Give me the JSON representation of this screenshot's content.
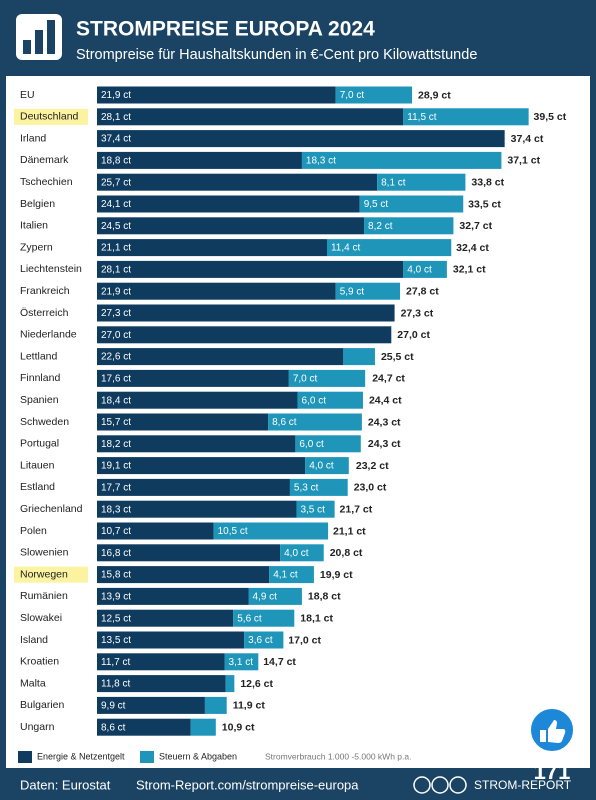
{
  "header": {
    "title": "STROMPREISE EUROPA 2024",
    "subtitle": "Strompreise für Haushaltskunden in €-Cent pro Kilowattstunde"
  },
  "chart_data": {
    "type": "bar",
    "orientation": "horizontal",
    "stacked": true,
    "categories": [
      "EU",
      "Deutschland",
      "Irland",
      "Dänemark",
      "Tschechien",
      "Belgien",
      "Italien",
      "Zypern",
      "Liechtenstein",
      "Frankreich",
      "Österreich",
      "Niederlande",
      "Lettland",
      "Finnland",
      "Spanien",
      "Schweden",
      "Portugal",
      "Litauen",
      "Estland",
      "Griechenland",
      "Polen",
      "Slowenien",
      "Norwegen",
      "Rumänien",
      "Slowakei",
      "Island",
      "Kroatien",
      "Malta",
      "Bulgarien",
      "Ungarn"
    ],
    "highlight": [
      1,
      22
    ],
    "xlim": [
      0,
      40
    ],
    "series": [
      {
        "name": "Energie & Netzentgelt",
        "color": "#0f3b5f",
        "values": [
          21.9,
          28.1,
          37.4,
          18.8,
          25.7,
          24.1,
          24.5,
          21.1,
          28.1,
          21.9,
          27.3,
          27.0,
          22.6,
          17.6,
          18.4,
          15.7,
          18.2,
          19.1,
          17.7,
          18.3,
          10.7,
          16.8,
          15.8,
          13.9,
          12.5,
          13.5,
          11.7,
          11.8,
          9.9,
          8.6
        ],
        "value_labels": [
          "21,9 ct",
          "28,1 ct",
          "37,4 ct",
          "18,8 ct",
          "25,7 ct",
          "24,1 ct",
          "24,5 ct",
          "21,1 ct",
          "28,1 ct",
          "21,9 ct",
          "27,3 ct",
          "27,0 ct",
          "22,6 ct",
          "17,6 ct",
          "18,4 ct",
          "15,7 ct",
          "18,2 ct",
          "19,1 ct",
          "17,7 ct",
          "18,3 ct",
          "10,7 ct",
          "16,8 ct",
          "15,8 ct",
          "13,9 ct",
          "12,5 ct",
          "13,5 ct",
          "11,7 ct",
          "11,8 ct",
          "9,9 ct",
          "8,6 ct"
        ]
      },
      {
        "name": "Steuern & Abgaben",
        "color": "#1e95b9",
        "values": [
          7.0,
          11.5,
          0,
          18.3,
          8.1,
          9.5,
          8.2,
          11.4,
          4.0,
          5.9,
          0,
          0,
          2.9,
          7.0,
          6.0,
          8.6,
          6.0,
          4.0,
          5.3,
          3.5,
          10.5,
          4.0,
          4.1,
          4.9,
          5.6,
          3.6,
          3.1,
          0.8,
          2.0,
          2.3
        ],
        "value_labels": [
          "7,0 ct",
          "11,5 ct",
          null,
          "18,3 ct",
          "8,1 ct",
          "9,5 ct",
          "8,2 ct",
          "11,4 ct",
          "4,0 ct",
          "5,9 ct",
          null,
          null,
          null,
          "7,0 ct",
          "6,0 ct",
          "8,6 ct",
          "6,0 ct",
          "4,0 ct",
          "5,3 ct",
          "3,5 ct",
          "10,5 ct",
          "4,0 ct",
          "4,1 ct",
          "4,9 ct",
          "5,6 ct",
          "3,6 ct",
          "3,1 ct",
          null,
          null,
          null
        ]
      }
    ],
    "totals": [
      28.9,
      39.5,
      37.4,
      37.1,
      33.8,
      33.5,
      32.7,
      32.4,
      32.1,
      27.8,
      27.3,
      27.0,
      25.5,
      24.7,
      24.4,
      24.3,
      24.3,
      23.2,
      23.0,
      21.7,
      21.1,
      20.8,
      19.9,
      18.8,
      18.1,
      17.0,
      14.7,
      12.6,
      11.9,
      10.9
    ],
    "total_labels": [
      "28,9 ct",
      "39,5 ct",
      "37,4 ct",
      "37,1 ct",
      "33,8 ct",
      "33,5 ct",
      "32,7 ct",
      "32,4 ct",
      "32,1 ct",
      "27,8 ct",
      "27,3 ct",
      "27,0 ct",
      "25,5 ct",
      "24,7 ct",
      "24,4 ct",
      "24,3 ct",
      "24,3 ct",
      "23,2 ct",
      "23,0 ct",
      "21,7 ct",
      "21,1 ct",
      "20,8 ct",
      "19,9 ct",
      "18,8 ct",
      "18,1 ct",
      "17,0 ct",
      "14,7 ct",
      "12,6 ct",
      "11,9 ct",
      "10,9 ct"
    ],
    "note": "Stromverbrauch 1.000 -5.000 kWh p.a."
  },
  "footer": {
    "source": "Daten: Eurostat",
    "url": "Strom-Report.com/strompreise-europa",
    "brand": "STROM-REPORT",
    "likes": "171"
  }
}
